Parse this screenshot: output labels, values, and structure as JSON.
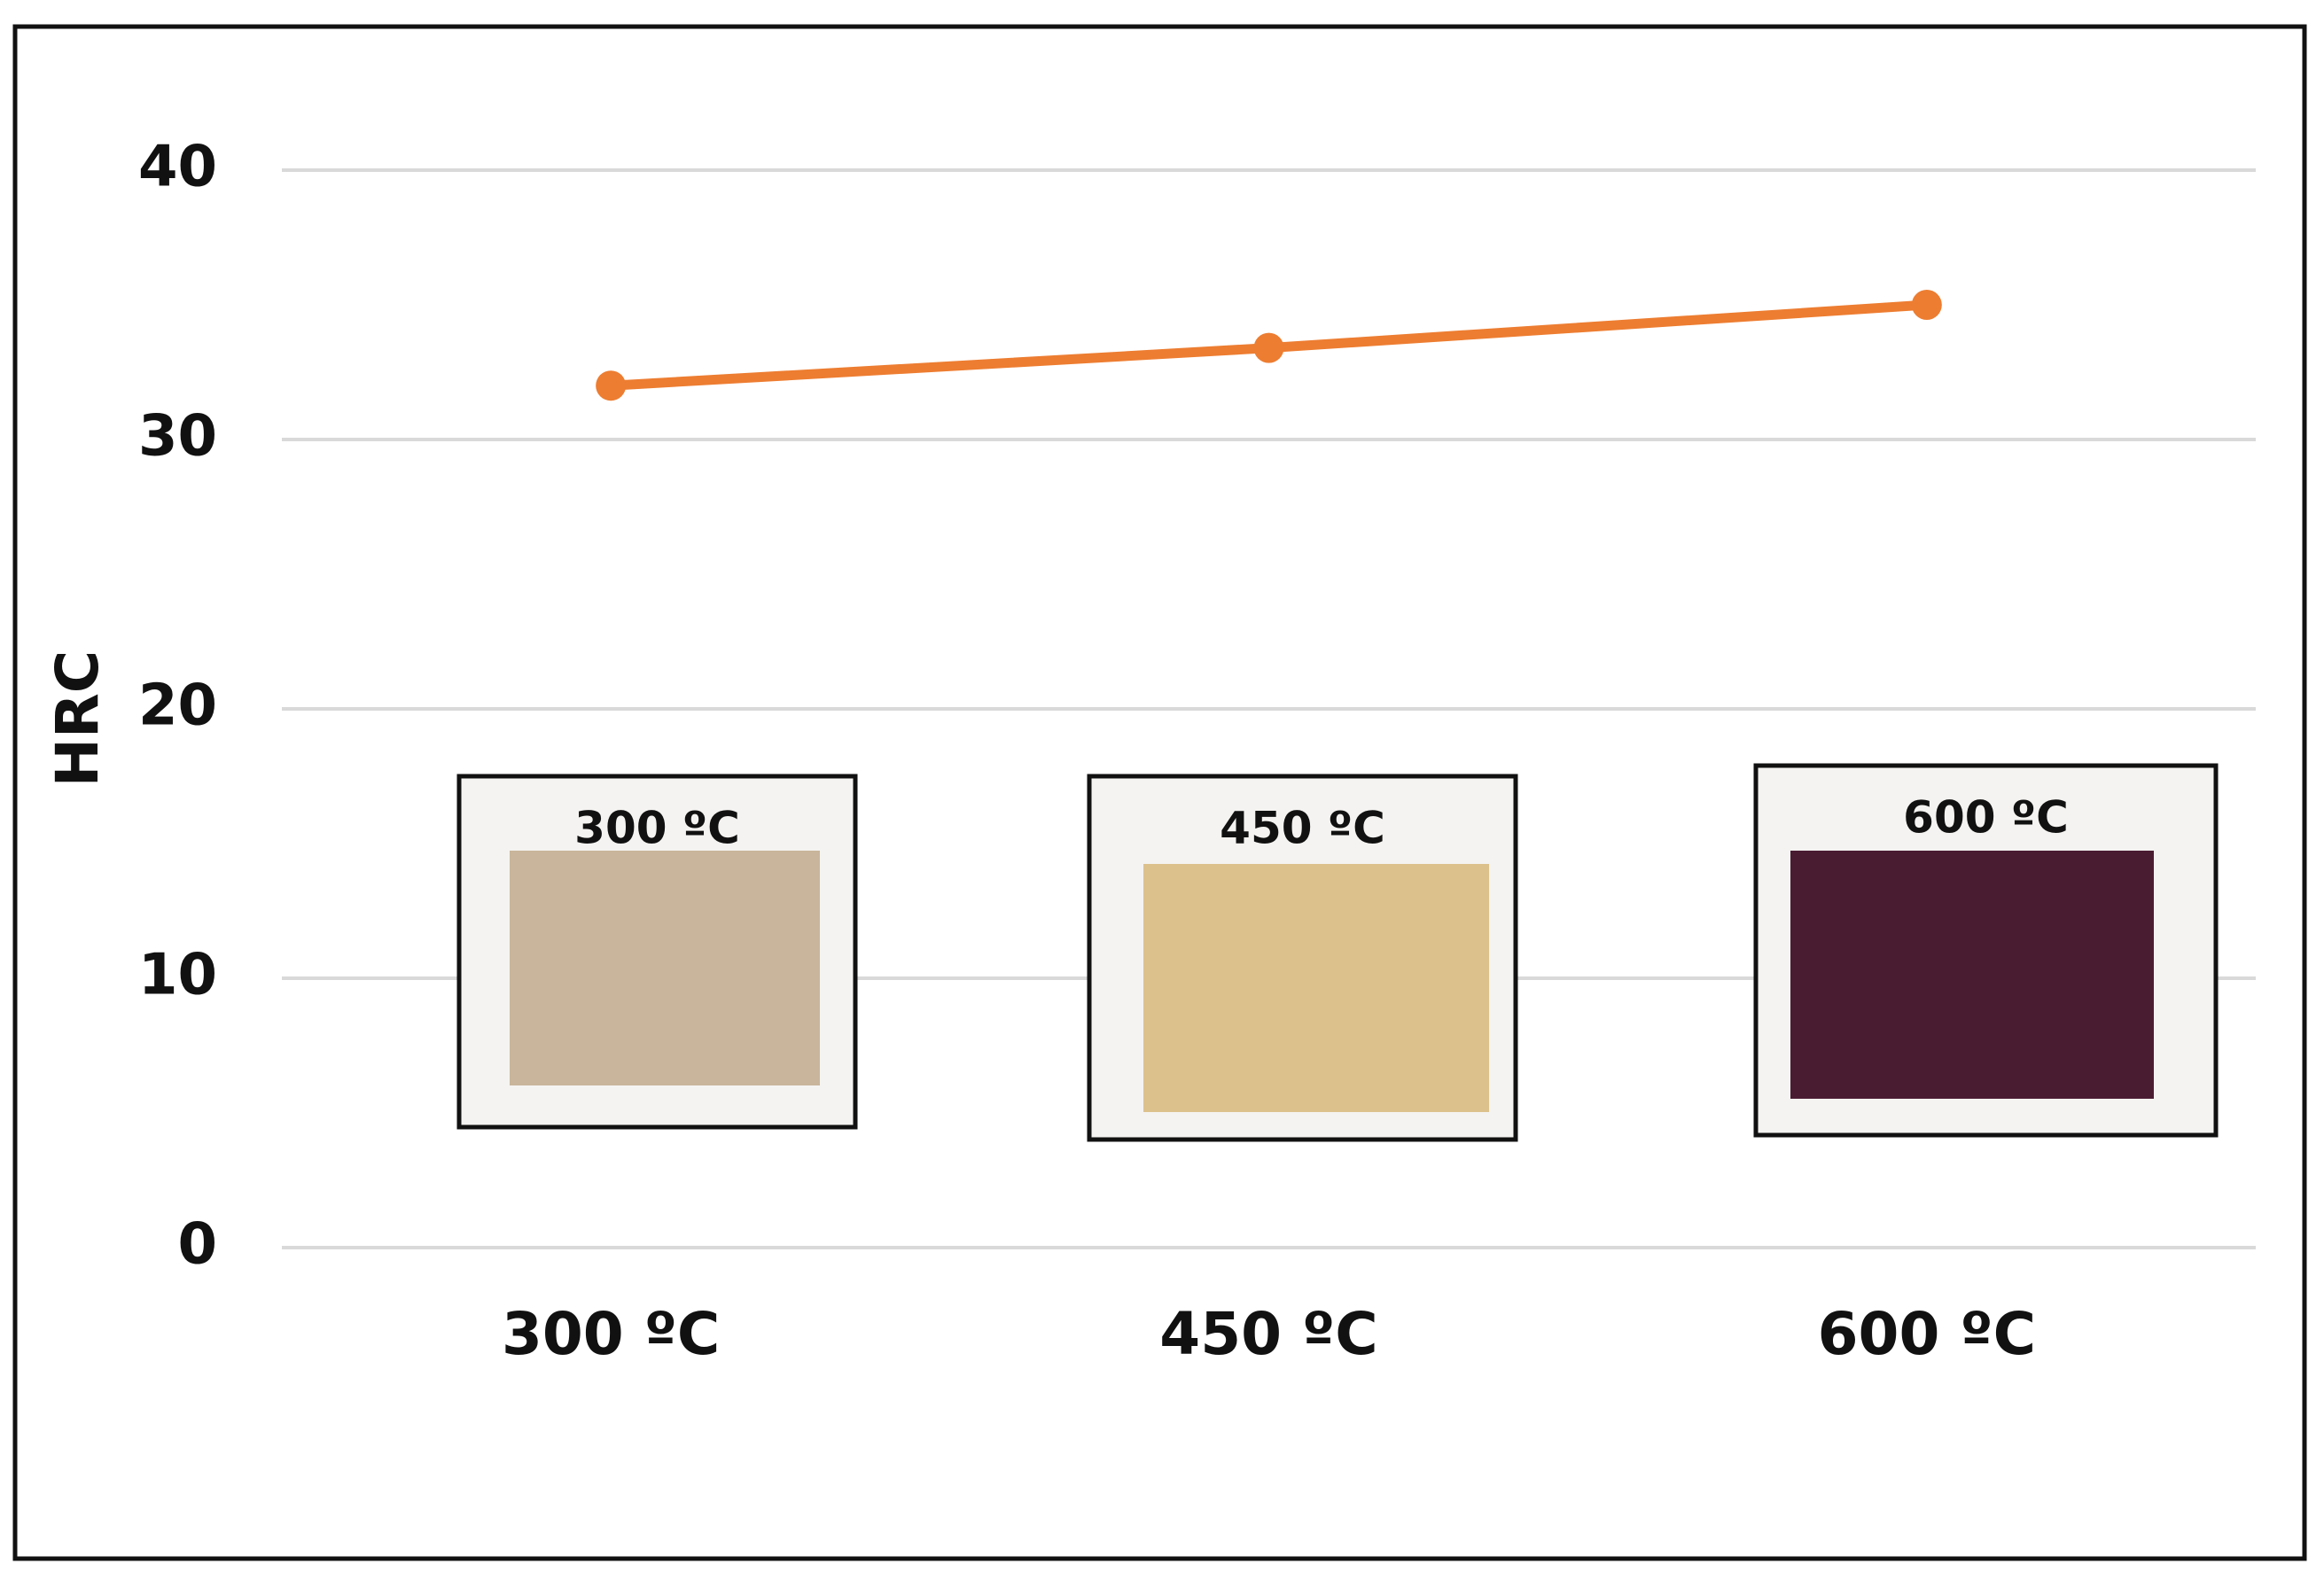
{
  "chart_data": {
    "type": "line",
    "y_label": "HRC",
    "categories": [
      "300 ºC",
      "450 ºC",
      "600 ºC"
    ],
    "series": [
      {
        "name": "HRC",
        "color": "#ed7d31",
        "values": [
          32,
          33.4,
          35
        ]
      }
    ],
    "ylim": [
      0,
      40
    ],
    "yticks": [
      0,
      10,
      20,
      30,
      40
    ],
    "grid": true,
    "annotations": [
      "300 ºC",
      "450 ºC",
      "600 ºC"
    ]
  }
}
